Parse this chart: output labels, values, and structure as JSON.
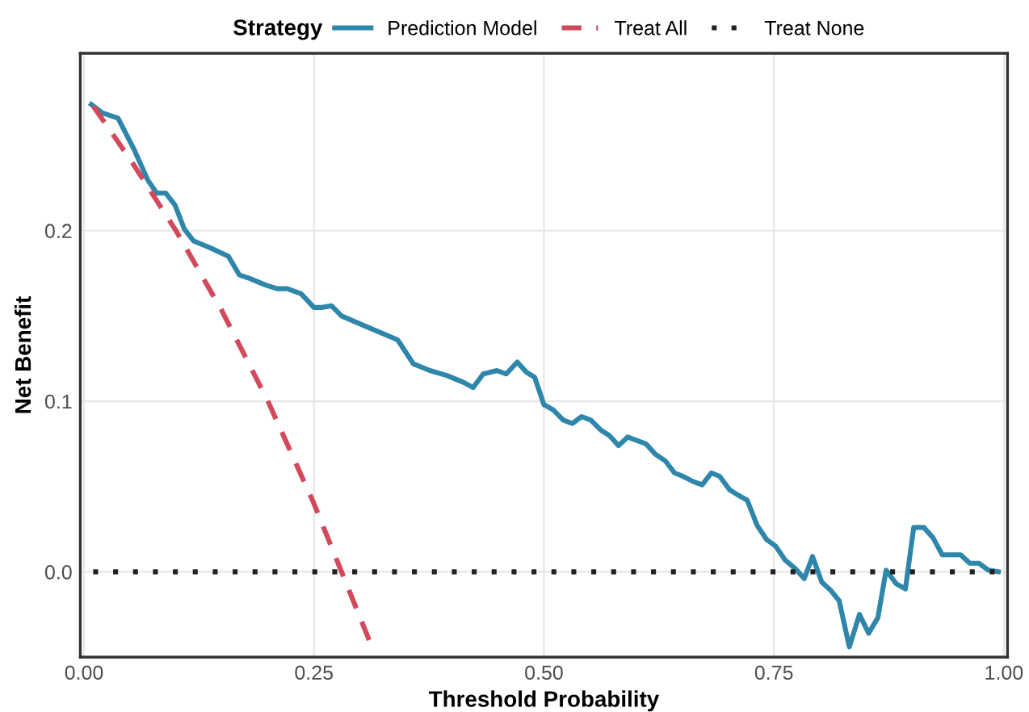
{
  "chart_data": {
    "type": "line",
    "xlabel": "Threshold Probability",
    "ylabel": "Net Benefit",
    "legend_title": "Strategy",
    "legend": "top",
    "xlim": [
      -0.004,
      1.004
    ],
    "ylim": [
      -0.05,
      0.304
    ],
    "xticks": [
      {
        "value": 0,
        "label": "0.00"
      },
      {
        "value": 0.25,
        "label": "0.25"
      },
      {
        "value": 0.5,
        "label": "0.50"
      },
      {
        "value": 0.75,
        "label": "0.75"
      },
      {
        "value": 1,
        "label": "1.00"
      }
    ],
    "yticks": [
      {
        "value": 0,
        "label": "0.0"
      },
      {
        "value": 0.1,
        "label": "0.1"
      },
      {
        "value": 0.2,
        "label": "0.2"
      }
    ],
    "grid": true,
    "series": [
      {
        "name": "Prediction Model",
        "color": "#2e86ab",
        "line_style": "solid",
        "x": [
          0.008,
          0.02,
          0.037,
          0.055,
          0.069,
          0.079,
          0.089,
          0.099,
          0.109,
          0.119,
          0.137,
          0.157,
          0.169,
          0.18,
          0.198,
          0.21,
          0.221,
          0.236,
          0.25,
          0.259,
          0.269,
          0.28,
          0.306,
          0.341,
          0.358,
          0.376,
          0.395,
          0.413,
          0.423,
          0.434,
          0.449,
          0.459,
          0.471,
          0.481,
          0.49,
          0.5,
          0.51,
          0.521,
          0.531,
          0.541,
          0.551,
          0.562,
          0.571,
          0.581,
          0.591,
          0.601,
          0.611,
          0.621,
          0.632,
          0.642,
          0.651,
          0.662,
          0.672,
          0.682,
          0.691,
          0.702,
          0.711,
          0.721,
          0.732,
          0.742,
          0.752,
          0.762,
          0.773,
          0.783,
          0.792,
          0.802,
          0.812,
          0.821,
          0.832,
          0.843,
          0.853,
          0.863,
          0.872,
          0.883,
          0.893,
          0.902,
          0.913,
          0.923,
          0.933,
          0.943,
          0.953,
          0.963,
          0.973,
          0.983,
          0.994
        ],
        "values": [
          0.274,
          0.269,
          0.266,
          0.247,
          0.23,
          0.222,
          0.222,
          0.215,
          0.201,
          0.194,
          0.19,
          0.185,
          0.174,
          0.172,
          0.168,
          0.166,
          0.166,
          0.163,
          0.155,
          0.155,
          0.156,
          0.15,
          0.144,
          0.136,
          0.122,
          0.118,
          0.115,
          0.111,
          0.108,
          0.116,
          0.118,
          0.116,
          0.123,
          0.117,
          0.114,
          0.098,
          0.095,
          0.089,
          0.087,
          0.091,
          0.089,
          0.083,
          0.08,
          0.074,
          0.079,
          0.077,
          0.075,
          0.069,
          0.065,
          0.058,
          0.056,
          0.053,
          0.051,
          0.058,
          0.056,
          0.048,
          0.045,
          0.042,
          0.027,
          0.019,
          0.015,
          0.007,
          0.002,
          -0.004,
          0.009,
          -0.006,
          -0.011,
          -0.017,
          -0.044,
          -0.025,
          -0.036,
          -0.027,
          0.001,
          -0.007,
          -0.01,
          0.026,
          0.026,
          0.02,
          0.01,
          0.01,
          0.01,
          0.005,
          0.005,
          0.001,
          0.0
        ]
      },
      {
        "name": "Treat All",
        "color": "#d1495b",
        "line_style": "dashed",
        "x": [
          0.01,
          0.05,
          0.1,
          0.15,
          0.2,
          0.25,
          0.28,
          0.31
        ],
        "values": [
          0.273,
          0.242,
          0.2,
          0.153,
          0.1,
          0.04,
          0.0,
          -0.04
        ]
      },
      {
        "name": "Treat None",
        "color": "#222222",
        "line_style": "dotted",
        "x": [
          0.01,
          0.99
        ],
        "values": [
          0.0,
          0.0
        ]
      }
    ]
  }
}
